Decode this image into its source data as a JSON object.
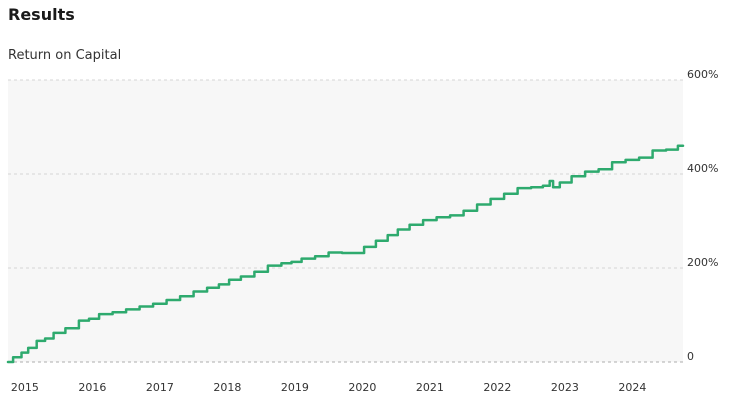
{
  "page": {
    "title": "Results"
  },
  "chart_data": {
    "type": "line",
    "title": "Return on Capital",
    "xlabel": "",
    "ylabel": "",
    "x_ticks": [
      "2015",
      "2016",
      "2017",
      "2018",
      "2019",
      "2020",
      "2021",
      "2022",
      "2023",
      "2024"
    ],
    "y_ticks": [
      "0",
      "200%",
      "400%",
      "600%"
    ],
    "xlim": [
      2014.75,
      2024.75
    ],
    "ylim": [
      0,
      600
    ],
    "y_unit": "%",
    "grid": "horizontal-dashed",
    "legend": "none",
    "colors": {
      "line": "#2eaa6e",
      "plot_background": "#f7f7f7",
      "grid": "#d6d6d6",
      "baseline": "#bdbdbd"
    },
    "series": [
      {
        "x": [
          2014.75,
          2014.9,
          2015.0,
          2015.1,
          2015.25,
          2015.35,
          2015.5,
          2015.7,
          2015.9,
          2016.0,
          2016.2,
          2016.4,
          2016.6,
          2016.8,
          2017.0,
          2017.2,
          2017.4,
          2017.6,
          2017.8,
          2017.95,
          2018.1,
          2018.3,
          2018.5,
          2018.7,
          2018.9,
          2019.0,
          2019.2,
          2019.4,
          2019.6,
          2019.8,
          2019.95,
          2020.1,
          2020.3,
          2020.45,
          2020.6,
          2020.8,
          2021.0,
          2021.2,
          2021.4,
          2021.6,
          2021.8,
          2022.0,
          2022.2,
          2022.4,
          2022.6,
          2022.75,
          2022.8,
          2022.85,
          2023.0,
          2023.2,
          2023.4,
          2023.6,
          2023.8,
          2024.0,
          2024.2,
          2024.4,
          2024.6,
          2024.75
        ],
        "y": [
          0,
          10,
          20,
          30,
          45,
          50,
          62,
          72,
          88,
          92,
          102,
          106,
          112,
          118,
          124,
          132,
          140,
          150,
          158,
          165,
          175,
          182,
          192,
          205,
          210,
          213,
          220,
          225,
          233,
          232,
          232,
          245,
          258,
          270,
          282,
          292,
          302,
          308,
          312,
          322,
          335,
          347,
          358,
          370,
          372,
          375,
          385,
          372,
          382,
          395,
          405,
          410,
          425,
          430,
          435,
          450,
          452,
          460
        ]
      }
    ]
  }
}
